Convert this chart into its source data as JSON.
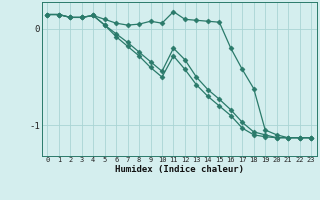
{
  "xlabel": "Humidex (Indice chaleur)",
  "x": [
    0,
    1,
    2,
    3,
    4,
    5,
    6,
    7,
    8,
    9,
    10,
    11,
    12,
    13,
    14,
    15,
    16,
    17,
    18,
    19,
    20,
    21,
    22,
    23
  ],
  "line1": [
    0.15,
    0.15,
    0.12,
    0.12,
    0.14,
    0.04,
    -0.05,
    -0.14,
    -0.24,
    -0.34,
    -0.44,
    -0.2,
    -0.32,
    -0.5,
    -0.63,
    -0.73,
    -0.84,
    -0.97,
    -1.07,
    -1.1,
    -1.13,
    -1.13,
    -1.13,
    -1.13
  ],
  "line2": [
    0.15,
    0.15,
    0.12,
    0.12,
    0.14,
    0.1,
    0.06,
    0.04,
    0.05,
    0.08,
    0.06,
    0.18,
    0.1,
    0.09,
    0.08,
    0.07,
    -0.2,
    -0.42,
    -0.62,
    -1.05,
    -1.1,
    -1.13,
    -1.13,
    -1.13
  ],
  "line3": [
    0.15,
    0.15,
    0.12,
    0.12,
    0.14,
    0.04,
    -0.08,
    -0.18,
    -0.28,
    -0.4,
    -0.5,
    -0.28,
    -0.42,
    -0.58,
    -0.7,
    -0.8,
    -0.9,
    -1.03,
    -1.1,
    -1.12,
    -1.13,
    -1.13,
    -1.13,
    -1.13
  ],
  "line_color": "#2a7a6a",
  "bg_color": "#d4eeee",
  "grid_color": "#aad4d4",
  "marker": "D",
  "marker_size": 2.5,
  "linewidth": 0.9,
  "yticks": [
    0,
    -1
  ],
  "ylim": [
    -1.32,
    0.28
  ],
  "xlim": [
    -0.5,
    23.5
  ],
  "figsize": [
    3.2,
    2.0
  ],
  "dpi": 100
}
